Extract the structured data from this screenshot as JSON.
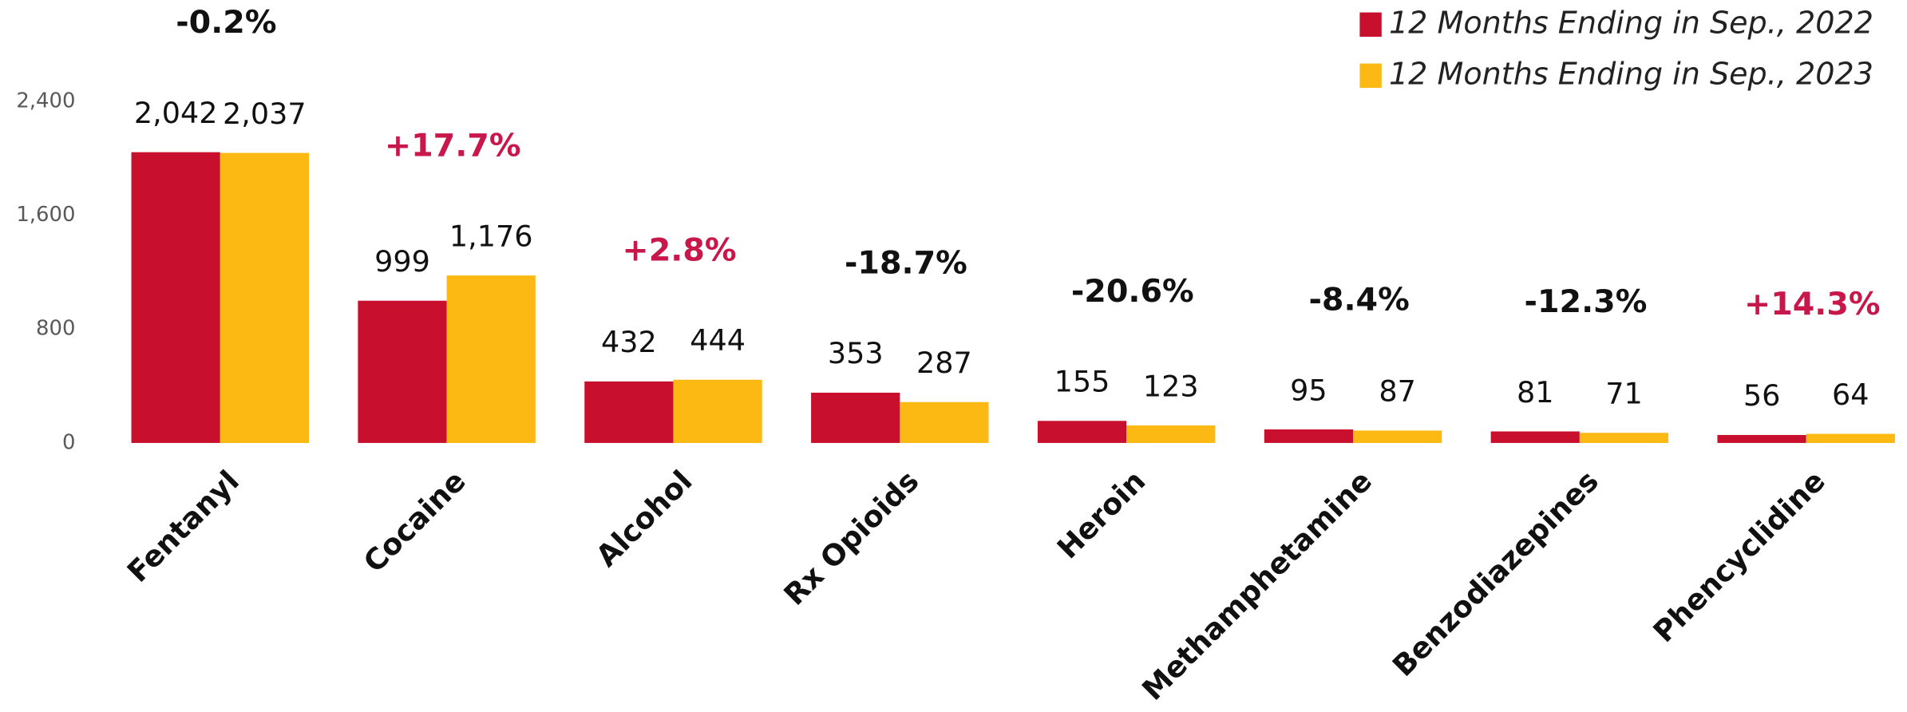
{
  "chart_data": {
    "type": "bar",
    "categories": [
      "Fentanyl",
      "Cocaine",
      "Alcohol",
      "Rx Opioids",
      "Heroin",
      "Methamphetamine",
      "Benzodiazepines",
      "Phencyclidine"
    ],
    "series": [
      {
        "name": "12 Months Ending in Sep., 2022",
        "color": "#c8102e",
        "values": [
          2042,
          999,
          432,
          353,
          155,
          95,
          81,
          56
        ],
        "value_labels": [
          "2,042",
          "999",
          "432",
          "353",
          "155",
          "95",
          "81",
          "56"
        ]
      },
      {
        "name": "12 Months Ending in Sep., 2023",
        "color": "#fdb913",
        "values": [
          2037,
          1176,
          444,
          287,
          123,
          87,
          71,
          64
        ],
        "value_labels": [
          "2,037",
          "1,176",
          "444",
          "287",
          "123",
          "87",
          "71",
          "64"
        ]
      }
    ],
    "annotations": [
      {
        "text": "-0.2%",
        "color": "#111111"
      },
      {
        "text": "+17.7%",
        "color": "#c8174a"
      },
      {
        "text": "+2.8%",
        "color": "#c8174a"
      },
      {
        "text": "-18.7%",
        "color": "#111111"
      },
      {
        "text": "-20.6%",
        "color": "#111111"
      },
      {
        "text": "-8.4%",
        "color": "#111111"
      },
      {
        "text": "-12.3%",
        "color": "#111111"
      },
      {
        "text": "+14.3%",
        "color": "#c8174a"
      }
    ],
    "ylim": [
      0,
      2400
    ],
    "yticks": [
      0,
      800,
      {
        "value": 1600,
        "label": "1,600"
      },
      {
        "value": 2400,
        "label": "2,400"
      }
    ],
    "grid": false,
    "legend": "top-right"
  }
}
